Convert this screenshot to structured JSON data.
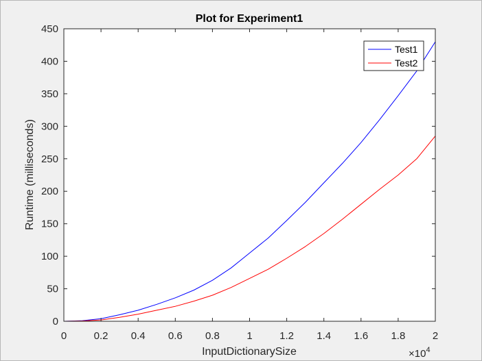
{
  "chart_data": {
    "type": "line",
    "title": "Plot for Experiment1",
    "xlabel": "InputDictionarySize",
    "ylabel": "Runtime (milliseconds)",
    "x_exponent_label": "×10",
    "x_exponent_power": "4",
    "xlim": [
      0,
      2
    ],
    "ylim": [
      0,
      450
    ],
    "x_ticks": [
      0,
      0.2,
      0.4,
      0.6,
      0.8,
      1,
      1.2,
      1.4,
      1.6,
      1.8,
      2
    ],
    "x_tick_labels": [
      "0",
      "0.2",
      "0.4",
      "0.6",
      "0.8",
      "1",
      "1.2",
      "1.4",
      "1.6",
      "1.8",
      "2"
    ],
    "y_ticks": [
      0,
      50,
      100,
      150,
      200,
      250,
      300,
      350,
      400,
      450
    ],
    "y_tick_labels": [
      "0",
      "50",
      "100",
      "150",
      "200",
      "250",
      "300",
      "350",
      "400",
      "450"
    ],
    "grid": false,
    "legend_position": "top-right",
    "series": [
      {
        "name": "Test1",
        "color": "#0000ff",
        "x": [
          0,
          0.1,
          0.2,
          0.3,
          0.4,
          0.5,
          0.6,
          0.7,
          0.8,
          0.9,
          1.0,
          1.1,
          1.2,
          1.3,
          1.4,
          1.5,
          1.6,
          1.7,
          1.8,
          1.9,
          2.0
        ],
        "y": [
          0,
          1,
          4,
          10,
          17,
          26,
          36,
          48,
          63,
          82,
          105,
          128,
          155,
          183,
          213,
          243,
          275,
          310,
          347,
          385,
          430
        ]
      },
      {
        "name": "Test2",
        "color": "#ff0000",
        "x": [
          0,
          0.1,
          0.2,
          0.3,
          0.4,
          0.5,
          0.6,
          0.7,
          0.8,
          0.9,
          1.0,
          1.1,
          1.2,
          1.3,
          1.4,
          1.5,
          1.6,
          1.7,
          1.8,
          1.9,
          2.0
        ],
        "y": [
          0,
          0.5,
          2,
          6,
          11,
          17,
          23,
          31,
          40,
          52,
          66,
          80,
          97,
          115,
          135,
          157,
          180,
          203,
          225,
          250,
          285
        ]
      }
    ]
  }
}
